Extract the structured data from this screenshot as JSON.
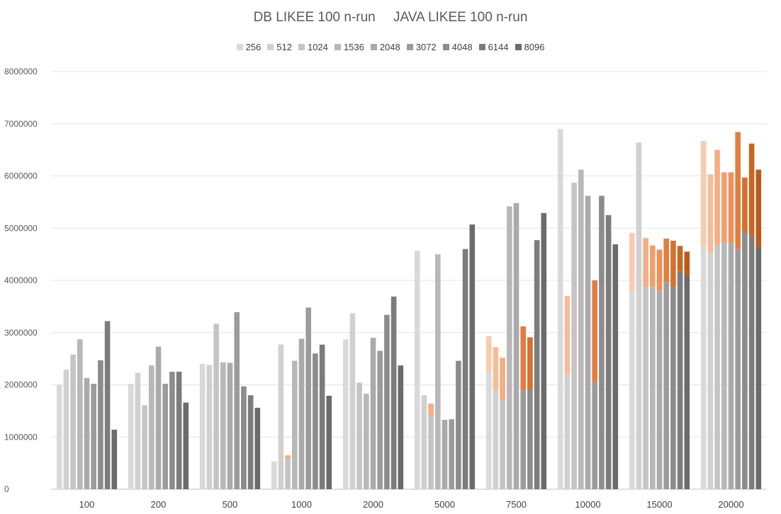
{
  "chart_data": {
    "type": "bar",
    "title_db": "DB LIKEE 100 n-run",
    "title_java": "JAVA LIKEE 100 n-run",
    "ylim": [
      0,
      8000000
    ],
    "yticks": [
      "0",
      "1000000",
      "2000000",
      "3000000",
      "4000000",
      "5000000",
      "6000000",
      "7000000",
      "8000000"
    ],
    "categories": [
      "100",
      "200",
      "500",
      "1000",
      "2000",
      "5000",
      "7500",
      "10000",
      "15000",
      "20000"
    ],
    "series_colors": [
      "#d9d9d9",
      "#d0d0d0",
      "#c4c4c4",
      "#b8b8b8",
      "#aaaaaa",
      "#9b9b9b",
      "#8c8c8c",
      "#7c7c7c",
      "#6b6b6b"
    ],
    "java_colors": [
      "#f8cbad",
      "#f6bc99",
      "#f4ad85",
      "#f19f70",
      "#ee905c",
      "#e27d40",
      "#d6702e",
      "#c96623",
      "#b85c1e"
    ],
    "series": [
      {
        "name": "256",
        "db": [
          2000000,
          2020000,
          2400000,
          530000,
          2870000,
          4570000,
          2250000,
          6900000,
          3800000,
          4640000
        ],
        "java": [
          0,
          0,
          0,
          0,
          0,
          0,
          2930000,
          0,
          4910000,
          6670000
        ]
      },
      {
        "name": "512",
        "db": [
          2290000,
          2230000,
          2380000,
          2770000,
          3370000,
          1800000,
          1900000,
          2200000,
          6640000,
          4530000
        ],
        "java": [
          0,
          0,
          0,
          0,
          0,
          0,
          2720000,
          3700000,
          0,
          6030000
        ]
      },
      {
        "name": "1024",
        "db": [
          2580000,
          1610000,
          3170000,
          590000,
          2040000,
          1400000,
          1700000,
          5870000,
          3870000,
          4680000
        ],
        "java": [
          0,
          0,
          0,
          650000,
          0,
          1640000,
          2520000,
          0,
          4810000,
          6500000
        ]
      },
      {
        "name": "1536",
        "db": [
          2870000,
          2370000,
          2430000,
          2460000,
          1830000,
          4500000,
          5420000,
          6120000,
          3880000,
          4720000
        ],
        "java": [
          0,
          0,
          0,
          0,
          0,
          0,
          0,
          0,
          4670000,
          6070000
        ]
      },
      {
        "name": "2048",
        "db": [
          2130000,
          2730000,
          2420000,
          2880000,
          2900000,
          1330000,
          5480000,
          5620000,
          3800000,
          4720000
        ],
        "java": [
          0,
          0,
          0,
          0,
          0,
          0,
          0,
          0,
          4590000,
          6070000
        ]
      },
      {
        "name": "3072",
        "db": [
          2020000,
          2020000,
          3390000,
          3480000,
          2650000,
          1340000,
          1900000,
          2050000,
          3970000,
          4600000
        ],
        "java": [
          0,
          0,
          0,
          0,
          0,
          0,
          3120000,
          4000000,
          4800000,
          6840000
        ]
      },
      {
        "name": "4048",
        "db": [
          2470000,
          2250000,
          1970000,
          2600000,
          3340000,
          2460000,
          1900000,
          5620000,
          3870000,
          4930000
        ],
        "java": [
          0,
          0,
          0,
          0,
          0,
          0,
          2910000,
          0,
          4760000,
          5970000
        ]
      },
      {
        "name": "6144",
        "db": [
          3220000,
          2250000,
          1800000,
          2770000,
          3690000,
          4600000,
          4770000,
          5250000,
          4180000,
          4850000
        ],
        "java": [
          0,
          0,
          0,
          0,
          0,
          0,
          0,
          0,
          4660000,
          6620000
        ]
      },
      {
        "name": "8096",
        "db": [
          1140000,
          1660000,
          1560000,
          1790000,
          2370000,
          5070000,
          5290000,
          4690000,
          4100000,
          4640000
        ],
        "java": [
          0,
          0,
          0,
          0,
          0,
          0,
          0,
          0,
          4550000,
          6120000
        ]
      }
    ]
  }
}
